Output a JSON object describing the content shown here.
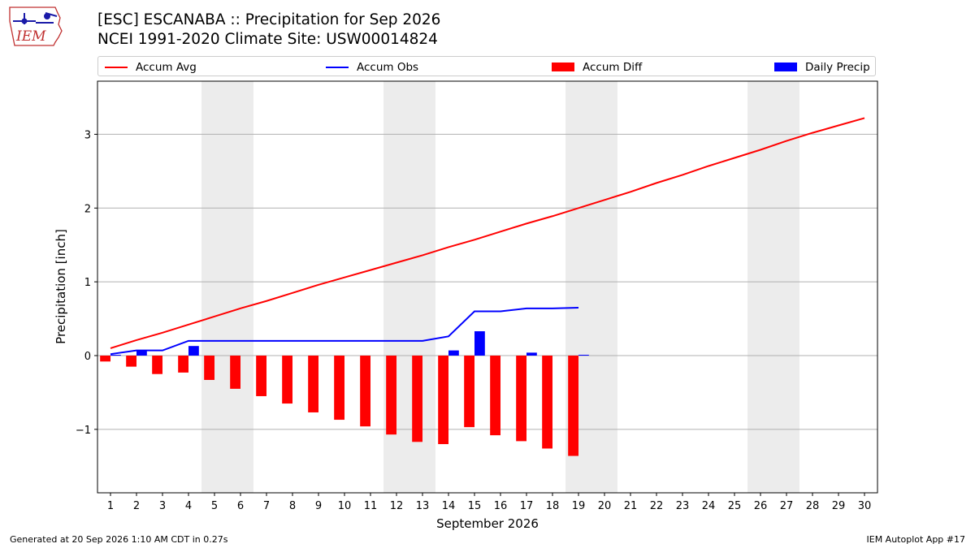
{
  "header": {
    "title_line1": "[ESC] ESCANABA :: Precipitation for Sep 2026",
    "title_line2": "NCEI 1991-2020 Climate Site: USW00014824"
  },
  "logo": {
    "text": "IEM"
  },
  "legend": [
    {
      "label": "Accum Avg",
      "color": "#ff0000",
      "kind": "line"
    },
    {
      "label": "Accum Obs",
      "color": "#0000ff",
      "kind": "line"
    },
    {
      "label": "Accum Diff",
      "color": "#ff0000",
      "kind": "box"
    },
    {
      "label": "Daily Precip",
      "color": "#0000ff",
      "kind": "box"
    }
  ],
  "footer": {
    "generated": "Generated at 20 Sep 2026 1:10 AM CDT in 0.27s",
    "app": "IEM Autoplot App #17"
  },
  "chart_data": {
    "type": "bar",
    "xlabel": "September 2026",
    "ylabel": "Precipitation [inch]",
    "xlim": [
      0.5,
      30.5
    ],
    "ylim": [
      -1.86,
      3.72
    ],
    "yticks": [
      -1,
      0,
      1,
      2,
      3
    ],
    "ytick_labels": [
      "−1",
      "0",
      "1",
      "2",
      "3"
    ],
    "x": [
      1,
      2,
      3,
      4,
      5,
      6,
      7,
      8,
      9,
      10,
      11,
      12,
      13,
      14,
      15,
      16,
      17,
      18,
      19,
      20,
      21,
      22,
      23,
      24,
      25,
      26,
      27,
      28,
      29,
      30
    ],
    "weekend_shading": [
      [
        4.5,
        6.5
      ],
      [
        11.5,
        13.5
      ],
      [
        18.5,
        20.5
      ],
      [
        25.5,
        27.5
      ]
    ],
    "grid": "horizontal",
    "series": [
      {
        "name": "Accum Avg",
        "kind": "line",
        "color": "#ff0000",
        "x": [
          1,
          2,
          3,
          4,
          5,
          6,
          7,
          8,
          9,
          10,
          11,
          12,
          13,
          14,
          15,
          16,
          17,
          18,
          19,
          20,
          21,
          22,
          23,
          24,
          25,
          26,
          27,
          28,
          29,
          30
        ],
        "values": [
          0.1,
          0.21,
          0.31,
          0.42,
          0.53,
          0.64,
          0.74,
          0.85,
          0.96,
          1.06,
          1.16,
          1.26,
          1.36,
          1.47,
          1.57,
          1.68,
          1.79,
          1.89,
          2.0,
          2.11,
          2.22,
          2.34,
          2.45,
          2.57,
          2.68,
          2.79,
          2.91,
          3.02,
          3.12,
          3.22
        ]
      },
      {
        "name": "Accum Obs",
        "kind": "line",
        "color": "#0000ff",
        "x": [
          1,
          2,
          3,
          4,
          5,
          6,
          7,
          8,
          9,
          10,
          11,
          12,
          13,
          14,
          15,
          16,
          17,
          18,
          19
        ],
        "values": [
          0.02,
          0.07,
          0.07,
          0.2,
          0.2,
          0.2,
          0.2,
          0.2,
          0.2,
          0.2,
          0.2,
          0.2,
          0.2,
          0.26,
          0.6,
          0.6,
          0.64,
          0.64,
          0.65
        ]
      },
      {
        "name": "Accum Diff",
        "kind": "bar",
        "color": "#ff0000",
        "offset": -0.2,
        "width": 0.4,
        "x": [
          1,
          2,
          3,
          4,
          5,
          6,
          7,
          8,
          9,
          10,
          11,
          12,
          13,
          14,
          15,
          16,
          17,
          18,
          19
        ],
        "values": [
          -0.08,
          -0.15,
          -0.25,
          -0.23,
          -0.33,
          -0.45,
          -0.55,
          -0.65,
          -0.77,
          -0.87,
          -0.96,
          -1.07,
          -1.17,
          -1.2,
          -0.97,
          -1.08,
          -1.16,
          -1.26,
          -1.36
        ]
      },
      {
        "name": "Daily Precip",
        "kind": "bar",
        "color": "#0000ff",
        "offset": 0.2,
        "width": 0.4,
        "x": [
          1,
          2,
          3,
          4,
          5,
          6,
          7,
          8,
          9,
          10,
          11,
          12,
          13,
          14,
          15,
          16,
          17,
          18,
          19
        ],
        "values": [
          0.01,
          0.07,
          0,
          0.13,
          0,
          0,
          0,
          0,
          0,
          0,
          0,
          0,
          0,
          0.07,
          0.33,
          0,
          0.04,
          0,
          0.01
        ]
      }
    ]
  }
}
